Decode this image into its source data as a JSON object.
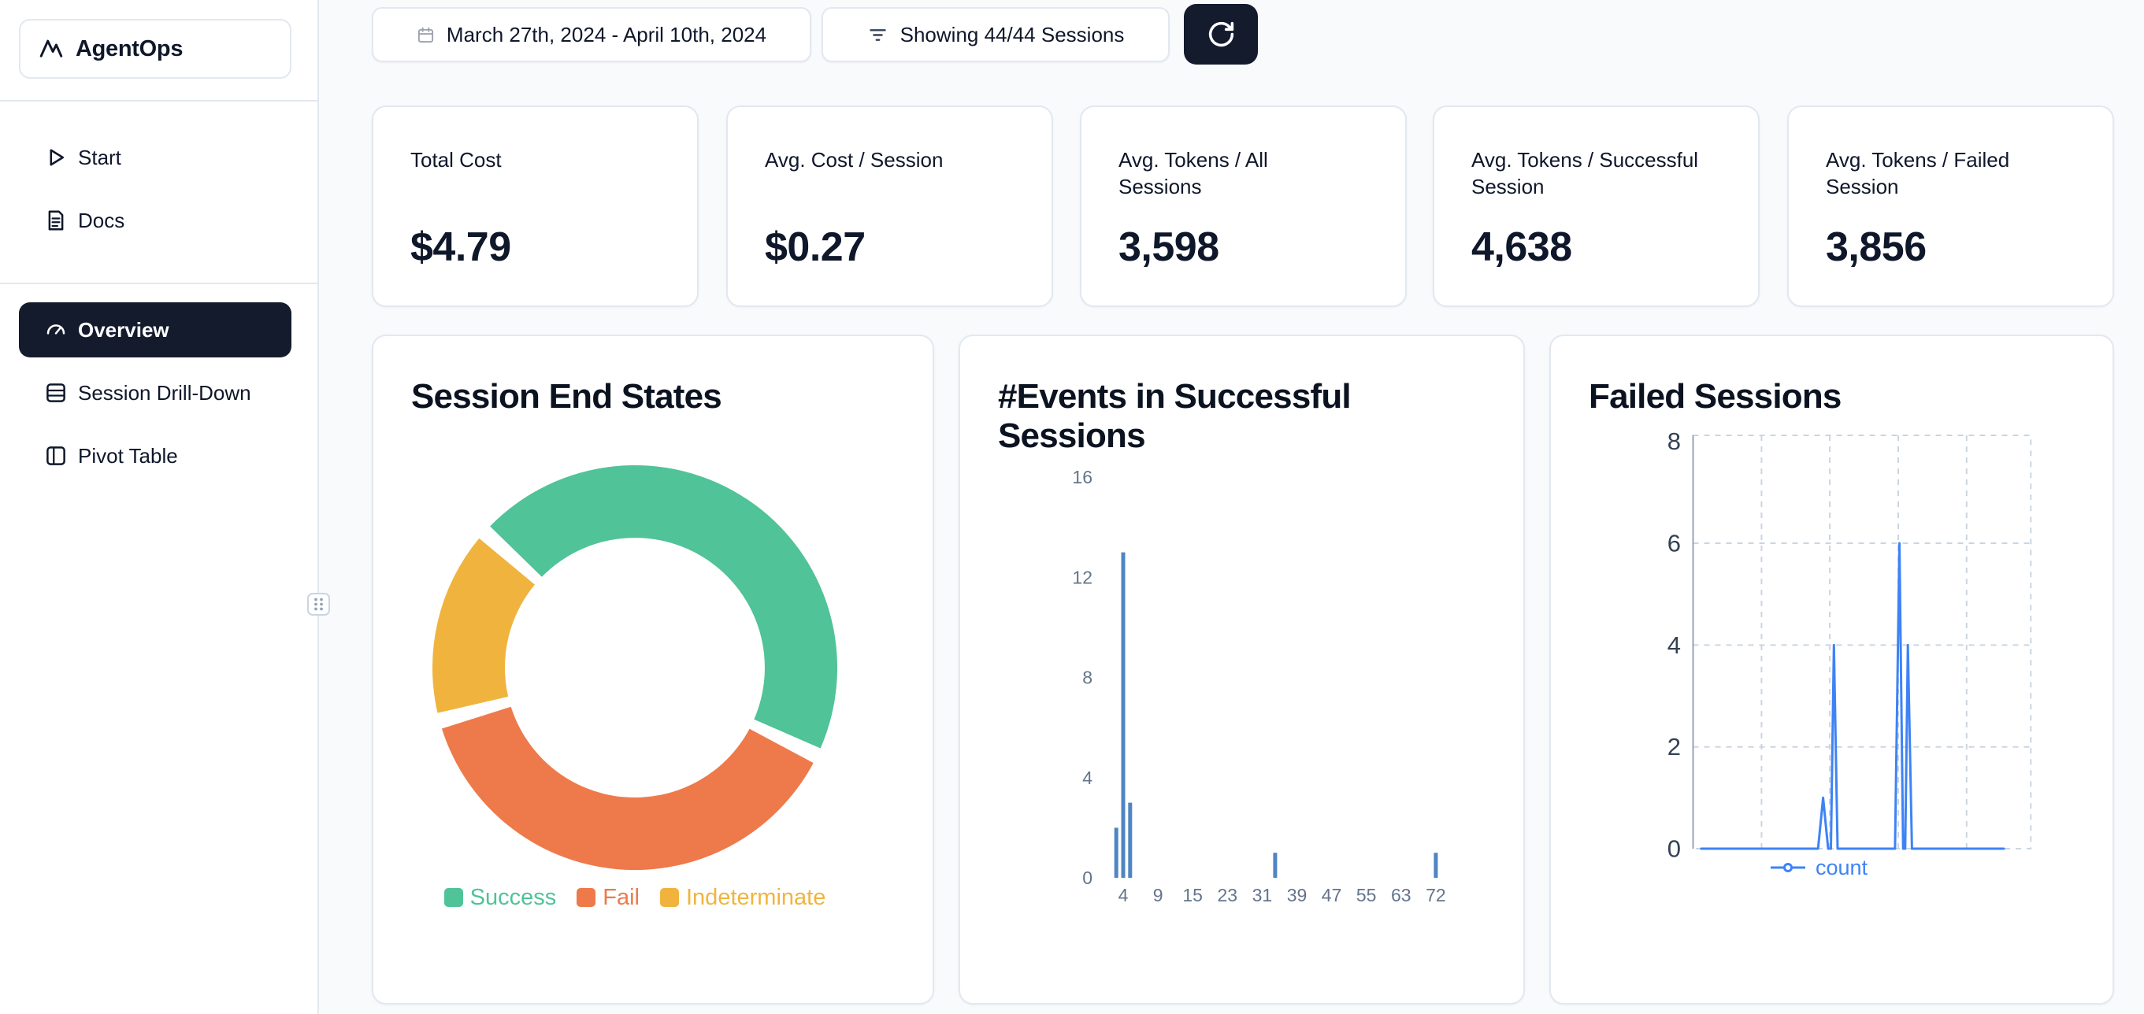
{
  "sidebar": {
    "logo_label": "AgentOps",
    "nav_top": [
      {
        "label": "Start"
      },
      {
        "label": "Docs"
      }
    ],
    "nav_main": [
      {
        "label": "Overview",
        "active": true
      },
      {
        "label": "Session Drill-Down",
        "active": false
      },
      {
        "label": "Pivot Table",
        "active": false
      }
    ]
  },
  "toolbar": {
    "date_range": "March 27th, 2024 - April 10th, 2024",
    "sessions_filter": "Showing 44/44 Sessions"
  },
  "stats": [
    {
      "label": "Total Cost",
      "value": "$4.79"
    },
    {
      "label": "Avg. Cost / Session",
      "value": "$0.27"
    },
    {
      "label": "Avg. Tokens / All Sessions",
      "value": "3,598"
    },
    {
      "label": "Avg. Tokens / Successful Session",
      "value": "4,638"
    },
    {
      "label": "Avg. Tokens / Failed Session",
      "value": "3,856"
    }
  ],
  "theme": {
    "dark_navy": "#131b2d",
    "card_border": "#e2e8f0",
    "page_background": "#f8fafc"
  },
  "chart_data": [
    {
      "type": "pie",
      "donut": true,
      "title": "Session End States",
      "labels": [
        "Success",
        "Fail",
        "Indeterminate"
      ],
      "values": [
        45.5,
        38.6,
        15.9
      ],
      "colors": [
        "#50c398",
        "#ee7a4b",
        "#f0b43e"
      ],
      "start_angle_deg": -48,
      "legend_position": "bottom"
    },
    {
      "type": "bar",
      "title": "#Events in Successful Sessions",
      "x_ticks": [
        4,
        9,
        15,
        23,
        31,
        39,
        47,
        55,
        63,
        72
      ],
      "y_ticks": [
        0,
        4,
        8,
        12,
        16
      ],
      "ylim": [
        0,
        16
      ],
      "bars": [
        {
          "x": 3,
          "count": 2
        },
        {
          "x": 4,
          "count": 13
        },
        {
          "x": 5,
          "count": 3
        },
        {
          "x": 34,
          "count": 1
        },
        {
          "x": 72,
          "count": 1
        }
      ],
      "bar_color": "#4e85c5",
      "grid": "off"
    },
    {
      "type": "line",
      "title": "Failed Sessions",
      "y_ticks": [
        0,
        2,
        4,
        6,
        8
      ],
      "ylim": [
        0,
        8
      ],
      "grid": "dashed",
      "legend_position": "bottom",
      "series": [
        {
          "name": "count",
          "color": "#3e83f6",
          "points": [
            [
              0.024,
              0
            ],
            [
              0.37,
              0
            ],
            [
              0.385,
              1
            ],
            [
              0.4,
              0
            ],
            [
              0.408,
              0
            ],
            [
              0.417,
              4
            ],
            [
              0.428,
              0
            ],
            [
              0.598,
              0
            ],
            [
              0.611,
              6
            ],
            [
              0.622,
              0
            ],
            [
              0.628,
              0
            ],
            [
              0.636,
              4
            ],
            [
              0.648,
              0
            ],
            [
              0.92,
              0
            ]
          ]
        }
      ]
    }
  ]
}
